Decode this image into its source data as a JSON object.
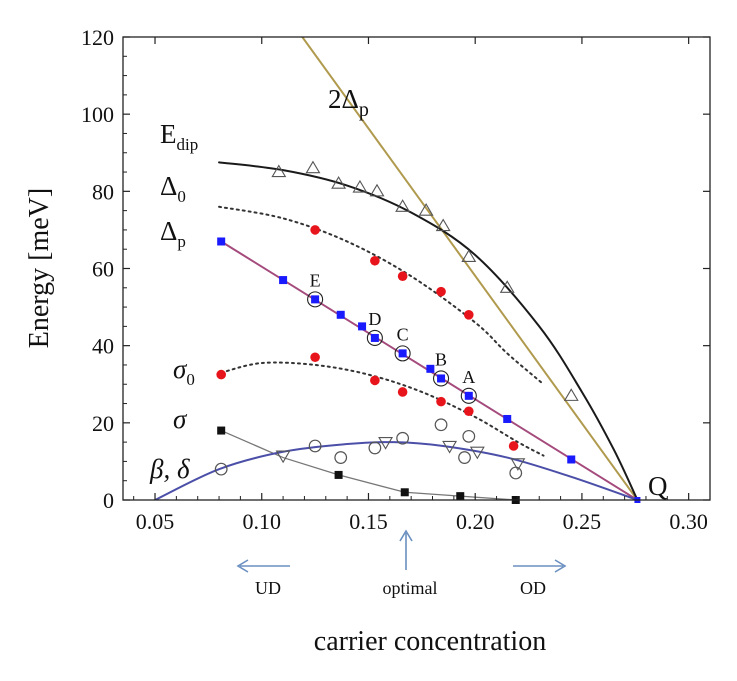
{
  "chart_data": {
    "type": "scatter",
    "xlabel": "carrier concentration",
    "ylabel": "Energy [meV]",
    "xlim": [
      0.035,
      0.31
    ],
    "ylim": [
      0,
      120
    ],
    "xticks": [
      "0.05",
      "0.10",
      "0.15",
      "0.20",
      "0.25",
      "0.30"
    ],
    "xtick_values": [
      0.05,
      0.1,
      0.15,
      0.2,
      0.25,
      0.3
    ],
    "yticks": [
      "0",
      "20",
      "40",
      "60",
      "80",
      "100",
      "120"
    ],
    "ytick_values": [
      0,
      20,
      40,
      60,
      80,
      100,
      120
    ],
    "labels": {
      "two_delta_p": "2Δ",
      "two_delta_p_sub": "p",
      "e_dip": "E",
      "e_dip_sub": "dip",
      "delta_0": "Δ",
      "delta_0_sub": "0",
      "delta_p": "Δ",
      "delta_p_sub": "p",
      "sigma_0": "σ",
      "sigma_0_sub": "0",
      "sigma": "σ",
      "beta_delta": "β, δ",
      "point_Q": "Q"
    },
    "doping_regions": {
      "ud": "UD",
      "optimal": "optimal",
      "od": "OD"
    },
    "point_labels": [
      {
        "label": "E",
        "x": 0.125,
        "y": 52
      },
      {
        "label": "D",
        "x": 0.153,
        "y": 42
      },
      {
        "label": "C",
        "x": 0.166,
        "y": 38
      },
      {
        "label": "B",
        "x": 0.184,
        "y": 31.5
      },
      {
        "label": "A",
        "x": 0.197,
        "y": 27
      }
    ],
    "series": [
      {
        "name": "E_dip (open triangles)",
        "marker": "triangle-up-open",
        "color": "#555555",
        "x": [
          0.108,
          0.124,
          0.136,
          0.146,
          0.154,
          0.166,
          0.177,
          0.185,
          0.197,
          0.215,
          0.245
        ],
        "y": [
          85,
          86,
          82,
          81,
          80,
          76,
          75,
          71,
          63,
          55,
          27
        ]
      },
      {
        "name": "Δ_0 (red circles upper)",
        "marker": "circle-filled",
        "color": "#e8141b",
        "x": [
          0.125,
          0.153,
          0.166,
          0.184,
          0.197
        ],
        "y": [
          70,
          62,
          58,
          54,
          48
        ]
      },
      {
        "name": "Δ_p (blue squares)",
        "marker": "square-filled",
        "color": "#1a1aff",
        "x": [
          0.081,
          0.11,
          0.125,
          0.137,
          0.147,
          0.153,
          0.166,
          0.179,
          0.184,
          0.197,
          0.215,
          0.245
        ],
        "y": [
          67,
          57,
          52,
          48,
          45,
          42,
          38,
          34,
          31.5,
          27,
          21,
          10.5
        ]
      },
      {
        "name": "σ_0 (red circles lower)",
        "marker": "circle-filled",
        "color": "#e8141b",
        "x": [
          0.081,
          0.125,
          0.153,
          0.166,
          0.184,
          0.197,
          0.218
        ],
        "y": [
          32.5,
          37,
          31,
          28,
          25.5,
          23,
          14
        ]
      },
      {
        "name": "σ (black squares)",
        "marker": "square-filled",
        "color": "#111111",
        "x": [
          0.081,
          0.136,
          0.167,
          0.193,
          0.219
        ],
        "y": [
          18,
          6.5,
          2,
          1,
          0
        ]
      },
      {
        "name": "β (open circles)",
        "marker": "circle-open",
        "color": "#555555",
        "x": [
          0.081,
          0.125,
          0.137,
          0.153,
          0.166,
          0.184,
          0.195,
          0.197,
          0.219
        ],
        "y": [
          8,
          14,
          11,
          13.5,
          16,
          19.5,
          11,
          16.5,
          7
        ]
      },
      {
        "name": "δ (open down triangles)",
        "marker": "triangle-down-open",
        "color": "#555555",
        "x": [
          0.11,
          0.158,
          0.188,
          0.201,
          0.22
        ],
        "y": [
          11.5,
          15,
          14,
          12.5,
          9.5
        ]
      }
    ],
    "curves": [
      {
        "name": "2Δ_p line",
        "style": "solid",
        "color": "#b09a4e",
        "x": [
          0.119,
          0.276
        ],
        "y": [
          120,
          0
        ]
      },
      {
        "name": "E_dip fit",
        "style": "solid",
        "color": "#1a1a1a",
        "x": [
          0.08,
          0.11,
          0.14,
          0.17,
          0.2,
          0.23,
          0.25,
          0.265,
          0.276
        ],
        "y": [
          87.5,
          85.5,
          81.5,
          74.5,
          63.5,
          45,
          28,
          13,
          0
        ]
      },
      {
        "name": "Δ_0 fit",
        "style": "dotted",
        "color": "#333333",
        "x": [
          0.08,
          0.11,
          0.14,
          0.17,
          0.2,
          0.215,
          0.232
        ],
        "y": [
          76,
          73,
          67,
          58,
          46,
          38,
          30
        ]
      },
      {
        "name": "Δ_p fit",
        "style": "solid",
        "color": "#a44a7c",
        "x": [
          0.081,
          0.276
        ],
        "y": [
          67,
          0
        ]
      },
      {
        "name": "σ_0 fit",
        "style": "dotted",
        "color": "#333333",
        "x": [
          0.081,
          0.1,
          0.125,
          0.15,
          0.175,
          0.2,
          0.22,
          0.232
        ],
        "y": [
          33,
          35.5,
          35,
          32.5,
          28,
          21.5,
          15,
          11.5
        ]
      },
      {
        "name": "σ fit",
        "style": "solid",
        "color": "#777777",
        "x": [
          0.081,
          0.11,
          0.136,
          0.167,
          0.193,
          0.219
        ],
        "y": [
          18,
          11,
          6.5,
          2,
          1,
          0
        ]
      },
      {
        "name": "β, δ fit (dome)",
        "style": "solid",
        "color": "#4b4fa8",
        "x": [
          0.05,
          0.08,
          0.11,
          0.14,
          0.162,
          0.185,
          0.215,
          0.245,
          0.276
        ],
        "y": [
          0,
          8,
          12.5,
          14.5,
          15,
          14,
          11,
          6,
          0
        ]
      }
    ]
  }
}
